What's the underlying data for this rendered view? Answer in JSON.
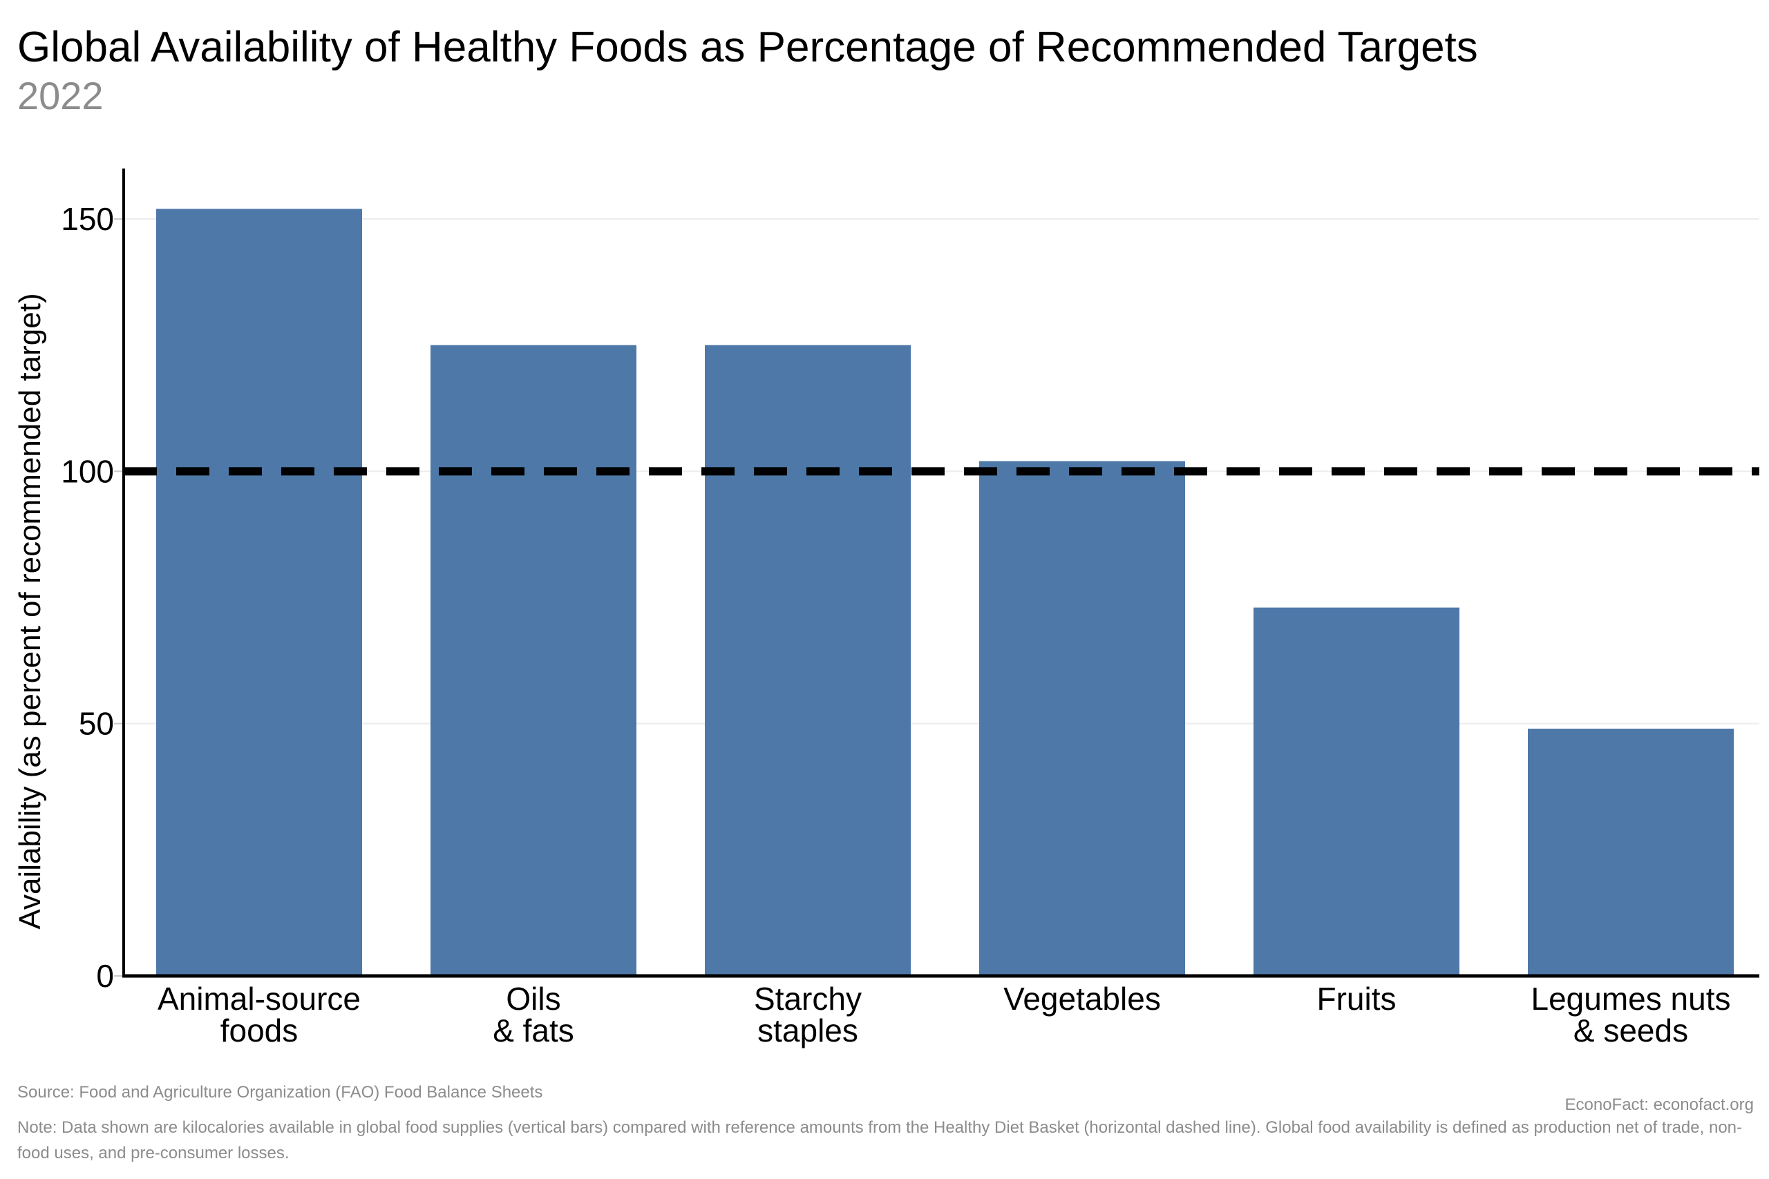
{
  "header": {
    "title": "Global Availability of Healthy Foods as Percentage of Recommended Targets",
    "subtitle": "2022"
  },
  "footer": {
    "source": "Source: Food and Agriculture Organization (FAO) Food Balance Sheets",
    "credit": "EconoFact: econofact.org",
    "note": "Note: Data shown are kilocalories available in global food supplies (vertical bars) compared with reference amounts from the Healthy Diet Basket (horizontal dashed line). Global food availability is defined as production net of trade, non-food uses, and pre-consumer losses."
  },
  "chart_data": {
    "type": "bar",
    "title": "Global Availability of Healthy Foods as Percentage of Recommended Targets",
    "subtitle": "2022",
    "categories": [
      "Animal-source\nfoods",
      "Oils\n& fats",
      "Starchy\nstaples",
      "Vegetables",
      "Fruits",
      "Legumes nuts\n& seeds"
    ],
    "values": [
      152,
      125,
      125,
      102,
      73,
      49
    ],
    "xlabel": "",
    "ylabel": "Availability (as percent of recommended target)",
    "yticks": [
      0,
      50,
      100,
      150
    ],
    "ylim": [
      0,
      160
    ],
    "grid": "horizontal-light",
    "legend": "none",
    "reference_line": {
      "value": 100,
      "style": "dashed",
      "color": "#000000"
    },
    "bar_color": "#4d78a8",
    "gridline_color": "#ececec",
    "axis_color": "#000000",
    "tick_color": "#c9c9c9",
    "muted_text_color": "#8c8c8c"
  }
}
